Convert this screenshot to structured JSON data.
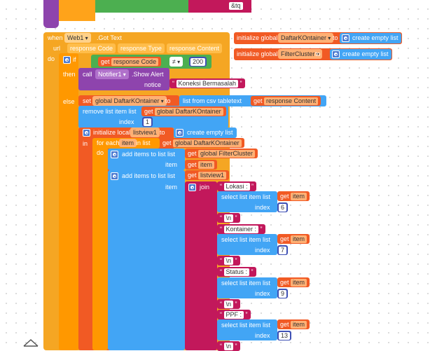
{
  "top": {
    "text_fragment": "&tq"
  },
  "event": {
    "when": "when",
    "component": "Web1",
    "event_name": ".Got Text",
    "p1": "url",
    "p2": "response Code",
    "p3": "response Type",
    "p4": "response Content",
    "do": "do"
  },
  "globals": [
    {
      "kw": "initialize global",
      "name": "DaftarKOntainer",
      "to": "to",
      "value": "create empty list"
    },
    {
      "kw": "initialize global",
      "name": "FilterCluster",
      "to": "to",
      "value": "create empty list"
    }
  ],
  "if_block": {
    "if": "if",
    "get": "get",
    "var": "response Code",
    "op": "≠",
    "value": "200",
    "then": "then",
    "else": "else"
  },
  "call": {
    "call": "call",
    "component": "Notifier1",
    "method": ".Show Alert",
    "notice": "notice",
    "message": "Koneksi Bermasalah"
  },
  "set": {
    "set": "set",
    "var": "global DaftarKOntainer",
    "to": "to",
    "csv": "list from csv tabletext",
    "get": "get",
    "arg": "response Content"
  },
  "remove": {
    "label": "remove list item  list",
    "get": "get",
    "list": "global DaftarKOntainer",
    "index": "index",
    "value": "1"
  },
  "local": {
    "kw": "initialize local",
    "name": "listview1",
    "to": "to",
    "value": "create empty list",
    "in": "in"
  },
  "foreach": {
    "label": "for each",
    "var": "item",
    "in_list": "in list",
    "get": "get",
    "list": "global DaftarKOntainer",
    "do": "do"
  },
  "add1": {
    "label": "add items to list  list",
    "get": "get",
    "list": "global FilterCluster",
    "item": "item",
    "get_item": "get",
    "item_var": "item"
  },
  "add2": {
    "label": "add items to list  list",
    "get": "get",
    "list": "listview1",
    "item": "item",
    "join": "join"
  },
  "join_items": [
    {
      "kind": "text",
      "value": "Lokasi : "
    },
    {
      "kind": "select",
      "label": "select list item  list",
      "get": "get",
      "var": "item",
      "index": "index",
      "num": "6"
    },
    {
      "kind": "text",
      "value": "\\n"
    },
    {
      "kind": "text",
      "value": "Kontainer : "
    },
    {
      "kind": "select",
      "label": "select list item  list",
      "get": "get",
      "var": "item",
      "index": "index",
      "num": "7"
    },
    {
      "kind": "text",
      "value": "\\n"
    },
    {
      "kind": "text",
      "value": "Status : "
    },
    {
      "kind": "select",
      "label": "select list item  list",
      "get": "get",
      "var": "item",
      "index": "index",
      "num": "9"
    },
    {
      "kind": "text",
      "value": "\\n"
    },
    {
      "kind": "text",
      "value": "PPF : "
    },
    {
      "kind": "select",
      "label": "select list item  list",
      "get": "get",
      "var": "item",
      "index": "index",
      "num": "13"
    },
    {
      "kind": "text",
      "value": "\\n"
    }
  ],
  "colors": {
    "event": "#f5a623",
    "proc": "#ffa31a",
    "control": "#ff9800",
    "logic_green": "#4caf50",
    "math": "#3f51b5",
    "text": "#c2185b",
    "list": "#42a5f5",
    "var": "#f15a24",
    "component": "#8e44ad"
  }
}
